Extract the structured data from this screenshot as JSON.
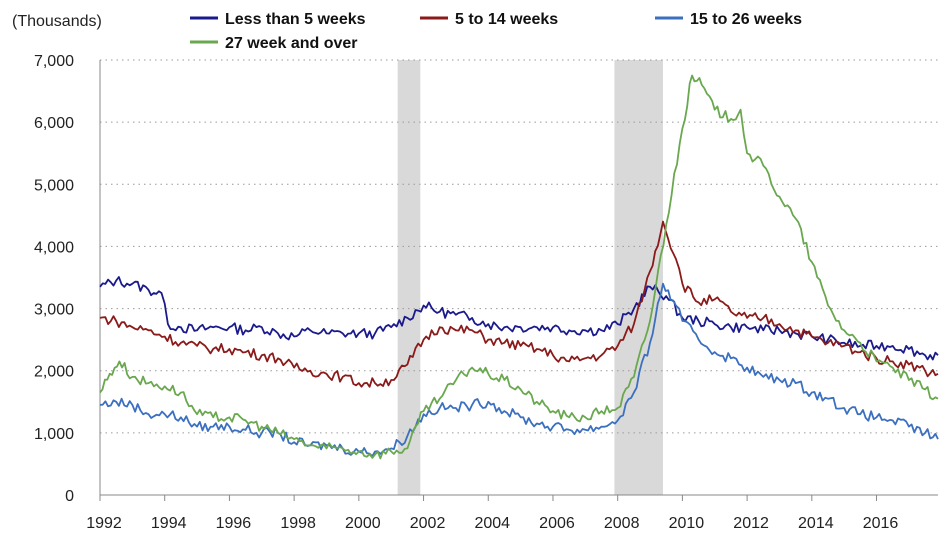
{
  "chart_data": {
    "type": "line",
    "title": "",
    "ylabel": "(Thousands)",
    "xlabel": "",
    "xlim": [
      1992,
      2017.9
    ],
    "ylim": [
      0,
      7000
    ],
    "y_ticks": [
      0,
      1000,
      2000,
      3000,
      4000,
      5000,
      6000,
      7000
    ],
    "y_tick_labels": [
      "0",
      "1,000",
      "2,000",
      "3,000",
      "4,000",
      "5,000",
      "6,000",
      "7,000"
    ],
    "x_ticks": [
      1992,
      1994,
      1996,
      1998,
      2000,
      2002,
      2004,
      2006,
      2008,
      2010,
      2012,
      2014,
      2016
    ],
    "x_tick_labels": [
      "1992",
      "1994",
      "1996",
      "1998",
      "2000",
      "2002",
      "2004",
      "2006",
      "2008",
      "2010",
      "2012",
      "2014",
      "2016"
    ],
    "grid": "horizontal dotted",
    "legend_position": "top",
    "recessions": [
      {
        "start": 2001.2,
        "end": 2001.9
      },
      {
        "start": 2007.9,
        "end": 2009.4
      }
    ],
    "series": [
      {
        "name": "Less than 5 weeks",
        "color": "#1a1a8c",
        "points": [
          [
            1992.0,
            3350
          ],
          [
            1992.5,
            3450
          ],
          [
            1993.0,
            3400
          ],
          [
            1993.5,
            3300
          ],
          [
            1993.9,
            3250
          ],
          [
            1994.1,
            2750
          ],
          [
            1994.5,
            2700
          ],
          [
            1995.0,
            2650
          ],
          [
            1995.5,
            2700
          ],
          [
            1996.0,
            2700
          ],
          [
            1996.5,
            2650
          ],
          [
            1997.0,
            2700
          ],
          [
            1997.5,
            2600
          ],
          [
            1998.0,
            2550
          ],
          [
            1998.5,
            2650
          ],
          [
            1999.0,
            2600
          ],
          [
            1999.5,
            2600
          ],
          [
            2000.0,
            2600
          ],
          [
            2000.5,
            2600
          ],
          [
            2001.0,
            2700
          ],
          [
            2001.5,
            2850
          ],
          [
            2002.0,
            3050
          ],
          [
            2002.5,
            2950
          ],
          [
            2003.0,
            2900
          ],
          [
            2003.5,
            2850
          ],
          [
            2004.0,
            2750
          ],
          [
            2004.5,
            2700
          ],
          [
            2005.0,
            2700
          ],
          [
            2005.5,
            2700
          ],
          [
            2006.0,
            2700
          ],
          [
            2006.5,
            2650
          ],
          [
            2007.0,
            2650
          ],
          [
            2007.5,
            2650
          ],
          [
            2008.0,
            2750
          ],
          [
            2008.5,
            3000
          ],
          [
            2009.0,
            3350
          ],
          [
            2009.5,
            3200
          ],
          [
            2010.0,
            2850
          ],
          [
            2010.5,
            2800
          ],
          [
            2011.0,
            2750
          ],
          [
            2011.5,
            2700
          ],
          [
            2012.0,
            2700
          ],
          [
            2012.5,
            2650
          ],
          [
            2013.0,
            2650
          ],
          [
            2013.5,
            2600
          ],
          [
            2014.0,
            2550
          ],
          [
            2014.5,
            2500
          ],
          [
            2015.0,
            2450
          ],
          [
            2015.5,
            2400
          ],
          [
            2016.0,
            2400
          ],
          [
            2016.5,
            2400
          ],
          [
            2017.0,
            2350
          ],
          [
            2017.5,
            2250
          ],
          [
            2017.9,
            2250
          ]
        ]
      },
      {
        "name": "5 to 14 weeks",
        "color": "#8b1a1a",
        "points": [
          [
            1992.0,
            2850
          ],
          [
            1992.5,
            2800
          ],
          [
            1993.0,
            2700
          ],
          [
            1993.5,
            2650
          ],
          [
            1994.0,
            2550
          ],
          [
            1994.5,
            2450
          ],
          [
            1995.0,
            2400
          ],
          [
            1995.5,
            2350
          ],
          [
            1996.0,
            2350
          ],
          [
            1996.5,
            2300
          ],
          [
            1997.0,
            2250
          ],
          [
            1997.5,
            2200
          ],
          [
            1998.0,
            2050
          ],
          [
            1998.5,
            2000
          ],
          [
            1999.0,
            1950
          ],
          [
            1999.5,
            1900
          ],
          [
            2000.0,
            1800
          ],
          [
            2000.5,
            1800
          ],
          [
            2001.0,
            1850
          ],
          [
            2001.5,
            2100
          ],
          [
            2002.0,
            2500
          ],
          [
            2002.5,
            2700
          ],
          [
            2003.0,
            2650
          ],
          [
            2003.5,
            2650
          ],
          [
            2004.0,
            2500
          ],
          [
            2004.5,
            2450
          ],
          [
            2005.0,
            2400
          ],
          [
            2005.5,
            2350
          ],
          [
            2006.0,
            2250
          ],
          [
            2006.5,
            2150
          ],
          [
            2007.0,
            2200
          ],
          [
            2007.5,
            2250
          ],
          [
            2008.0,
            2400
          ],
          [
            2008.5,
            2750
          ],
          [
            2009.0,
            3600
          ],
          [
            2009.4,
            4400
          ],
          [
            2009.8,
            3800
          ],
          [
            2010.0,
            3400
          ],
          [
            2010.5,
            3100
          ],
          [
            2011.0,
            3150
          ],
          [
            2011.5,
            2950
          ],
          [
            2012.0,
            2850
          ],
          [
            2012.5,
            2850
          ],
          [
            2013.0,
            2750
          ],
          [
            2013.5,
            2650
          ],
          [
            2014.0,
            2550
          ],
          [
            2014.5,
            2450
          ],
          [
            2015.0,
            2400
          ],
          [
            2015.5,
            2300
          ],
          [
            2016.0,
            2200
          ],
          [
            2016.5,
            2150
          ],
          [
            2017.0,
            2100
          ],
          [
            2017.5,
            2000
          ],
          [
            2017.9,
            1950
          ]
        ]
      },
      {
        "name": "15 to 26 weeks",
        "color": "#3b6fbf",
        "points": [
          [
            1992.0,
            1450
          ],
          [
            1992.5,
            1500
          ],
          [
            1993.0,
            1450
          ],
          [
            1993.5,
            1300
          ],
          [
            1994.0,
            1300
          ],
          [
            1994.5,
            1250
          ],
          [
            1995.0,
            1100
          ],
          [
            1995.5,
            1100
          ],
          [
            1996.0,
            1100
          ],
          [
            1996.5,
            1050
          ],
          [
            1997.0,
            1000
          ],
          [
            1997.5,
            1000
          ],
          [
            1998.0,
            850
          ],
          [
            1998.5,
            800
          ],
          [
            1999.0,
            800
          ],
          [
            1999.5,
            750
          ],
          [
            2000.0,
            700
          ],
          [
            2000.5,
            700
          ],
          [
            2001.0,
            750
          ],
          [
            2001.5,
            950
          ],
          [
            2002.0,
            1300
          ],
          [
            2002.5,
            1400
          ],
          [
            2003.0,
            1400
          ],
          [
            2003.5,
            1450
          ],
          [
            2004.0,
            1500
          ],
          [
            2004.5,
            1350
          ],
          [
            2005.0,
            1250
          ],
          [
            2005.5,
            1150
          ],
          [
            2006.0,
            1100
          ],
          [
            2006.5,
            1050
          ],
          [
            2007.0,
            1050
          ],
          [
            2007.5,
            1100
          ],
          [
            2008.0,
            1200
          ],
          [
            2008.5,
            1650
          ],
          [
            2009.0,
            2450
          ],
          [
            2009.4,
            3400
          ],
          [
            2009.8,
            3050
          ],
          [
            2010.0,
            2800
          ],
          [
            2010.5,
            2500
          ],
          [
            2011.0,
            2300
          ],
          [
            2011.5,
            2200
          ],
          [
            2012.0,
            2050
          ],
          [
            2012.5,
            1900
          ],
          [
            2013.0,
            1850
          ],
          [
            2013.5,
            1800
          ],
          [
            2014.0,
            1650
          ],
          [
            2014.5,
            1550
          ],
          [
            2015.0,
            1400
          ],
          [
            2015.5,
            1300
          ],
          [
            2016.0,
            1250
          ],
          [
            2016.5,
            1200
          ],
          [
            2017.0,
            1100
          ],
          [
            2017.5,
            1000
          ],
          [
            2017.9,
            900
          ]
        ]
      },
      {
        "name": "27 week and over",
        "color": "#6aa84f",
        "points": [
          [
            1992.0,
            1650
          ],
          [
            1992.3,
            1950
          ],
          [
            1992.6,
            2150
          ],
          [
            1993.0,
            1900
          ],
          [
            1993.5,
            1800
          ],
          [
            1994.0,
            1750
          ],
          [
            1994.5,
            1650
          ],
          [
            1995.0,
            1300
          ],
          [
            1995.5,
            1250
          ],
          [
            1996.0,
            1250
          ],
          [
            1996.5,
            1200
          ],
          [
            1997.0,
            1100
          ],
          [
            1997.5,
            1000
          ],
          [
            1998.0,
            900
          ],
          [
            1998.5,
            800
          ],
          [
            1999.0,
            750
          ],
          [
            1999.5,
            750
          ],
          [
            2000.0,
            700
          ],
          [
            2000.5,
            650
          ],
          [
            2001.0,
            700
          ],
          [
            2001.5,
            750
          ],
          [
            2002.0,
            1350
          ],
          [
            2002.5,
            1550
          ],
          [
            2003.0,
            1850
          ],
          [
            2003.5,
            2050
          ],
          [
            2004.0,
            1950
          ],
          [
            2004.5,
            1850
          ],
          [
            2005.0,
            1700
          ],
          [
            2005.5,
            1500
          ],
          [
            2006.0,
            1350
          ],
          [
            2006.5,
            1250
          ],
          [
            2007.0,
            1250
          ],
          [
            2007.5,
            1350
          ],
          [
            2008.0,
            1400
          ],
          [
            2008.5,
            1900
          ],
          [
            2009.0,
            2800
          ],
          [
            2009.5,
            4350
          ],
          [
            2010.0,
            5900
          ],
          [
            2010.3,
            6750
          ],
          [
            2010.6,
            6600
          ],
          [
            2011.0,
            6200
          ],
          [
            2011.5,
            6050
          ],
          [
            2011.8,
            6200
          ],
          [
            2012.0,
            5500
          ],
          [
            2012.5,
            5300
          ],
          [
            2013.0,
            4800
          ],
          [
            2013.5,
            4450
          ],
          [
            2014.0,
            3750
          ],
          [
            2014.5,
            3050
          ],
          [
            2015.0,
            2650
          ],
          [
            2015.5,
            2450
          ],
          [
            2016.0,
            2150
          ],
          [
            2016.5,
            2050
          ],
          [
            2017.0,
            1850
          ],
          [
            2017.5,
            1700
          ],
          [
            2017.9,
            1550
          ]
        ]
      }
    ]
  }
}
